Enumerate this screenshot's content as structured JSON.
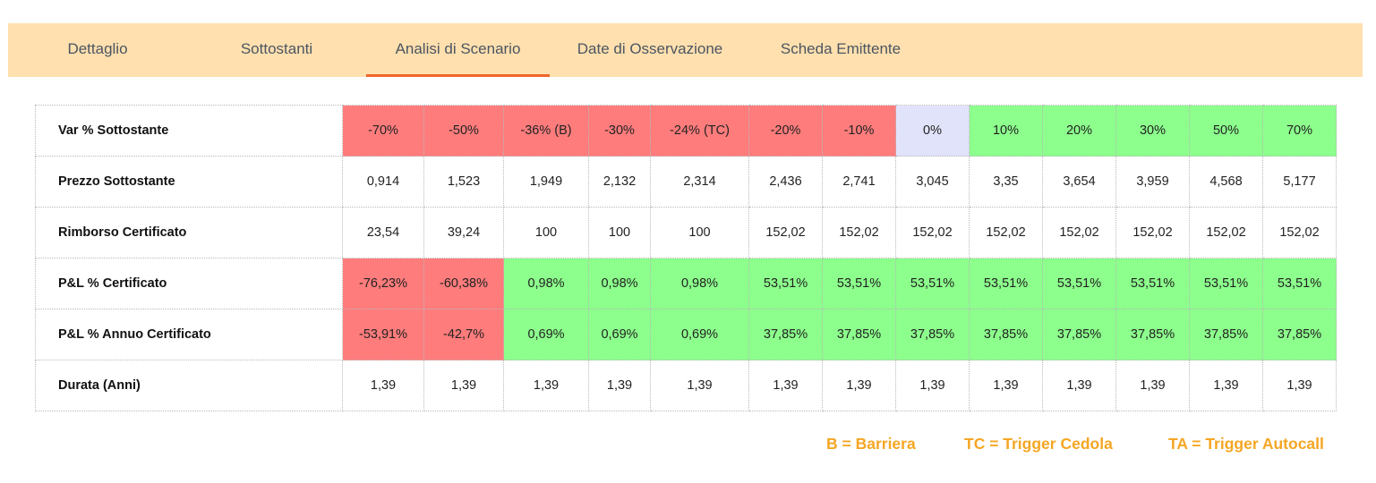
{
  "tabs": [
    {
      "label": "Dettaglio",
      "active": false
    },
    {
      "label": "Sottostanti",
      "active": false
    },
    {
      "label": "Analisi di Scenario",
      "active": true
    },
    {
      "label": "Date di Osservazione",
      "active": false
    },
    {
      "label": "Scheda Emittente",
      "active": false
    }
  ],
  "colors": {
    "tabbar_bg": "#ffe0ae",
    "active_underline": "#f0652a",
    "negative": "#ff7c7c",
    "positive": "#8cff8c",
    "neutral": "#e1e3fb",
    "legend": "#f5a623"
  },
  "table": {
    "rows": [
      {
        "label": "Var % Sottostante",
        "cells": [
          "-70%",
          "-50%",
          "-36% (B)",
          "-30%",
          "-24% (TC)",
          "-20%",
          "-10%",
          "0%",
          "10%",
          "20%",
          "30%",
          "50%",
          "70%"
        ],
        "colors": [
          "red",
          "red",
          "red",
          "red",
          "red",
          "red",
          "red",
          "neutral",
          "green",
          "green",
          "green",
          "green",
          "green"
        ]
      },
      {
        "label": "Prezzo Sottostante",
        "cells": [
          "0,914",
          "1,523",
          "1,949",
          "2,132",
          "2,314",
          "2,436",
          "2,741",
          "3,045",
          "3,35",
          "3,654",
          "3,959",
          "4,568",
          "5,177"
        ],
        "colors": [
          "",
          "",
          "",
          "",
          "",
          "",
          "",
          "",
          "",
          "",
          "",
          "",
          ""
        ]
      },
      {
        "label": "Rimborso Certificato",
        "cells": [
          "23,54",
          "39,24",
          "100",
          "100",
          "100",
          "152,02",
          "152,02",
          "152,02",
          "152,02",
          "152,02",
          "152,02",
          "152,02",
          "152,02"
        ],
        "colors": [
          "",
          "",
          "",
          "",
          "",
          "",
          "",
          "",
          "",
          "",
          "",
          "",
          ""
        ]
      },
      {
        "label": "P&L % Certificato",
        "cells": [
          "-76,23%",
          "-60,38%",
          "0,98%",
          "0,98%",
          "0,98%",
          "53,51%",
          "53,51%",
          "53,51%",
          "53,51%",
          "53,51%",
          "53,51%",
          "53,51%",
          "53,51%"
        ],
        "colors": [
          "red",
          "red",
          "green",
          "green",
          "green",
          "green",
          "green",
          "green",
          "green",
          "green",
          "green",
          "green",
          "green"
        ]
      },
      {
        "label": "P&L % Annuo Certificato",
        "cells": [
          "-53,91%",
          "-42,7%",
          "0,69%",
          "0,69%",
          "0,69%",
          "37,85%",
          "37,85%",
          "37,85%",
          "37,85%",
          "37,85%",
          "37,85%",
          "37,85%",
          "37,85%"
        ],
        "colors": [
          "red",
          "red",
          "green",
          "green",
          "green",
          "green",
          "green",
          "green",
          "green",
          "green",
          "green",
          "green",
          "green"
        ]
      },
      {
        "label": "Durata (Anni)",
        "cells": [
          "1,39",
          "1,39",
          "1,39",
          "1,39",
          "1,39",
          "1,39",
          "1,39",
          "1,39",
          "1,39",
          "1,39",
          "1,39",
          "1,39",
          "1,39"
        ],
        "colors": [
          "",
          "",
          "",
          "",
          "",
          "",
          "",
          "",
          "",
          "",
          "",
          "",
          ""
        ]
      }
    ]
  },
  "legend": [
    {
      "text": "B = Barriera"
    },
    {
      "text": "TC = Trigger Cedola"
    },
    {
      "text": "TA = Trigger Autocall"
    }
  ]
}
